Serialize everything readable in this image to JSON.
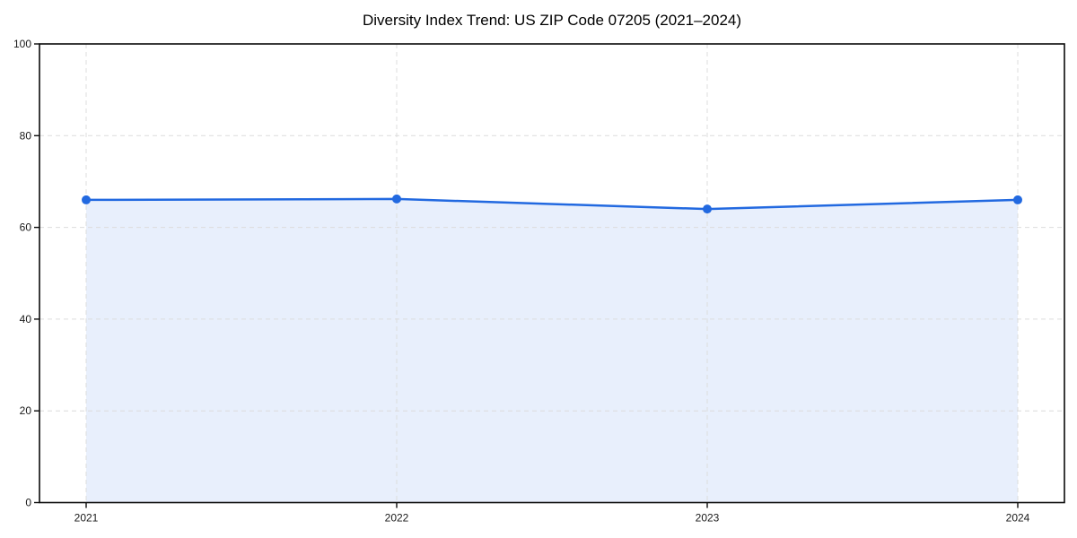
{
  "chart_data": {
    "type": "area",
    "title": "Diversity Index Trend: US ZIP Code 07205 (2021–2024)",
    "categories": [
      "2021",
      "2022",
      "2023",
      "2024"
    ],
    "series": [
      {
        "name": "Diversity Index",
        "values": [
          66,
          66.2,
          64,
          66
        ]
      }
    ],
    "xlabel": "",
    "ylabel": "",
    "ylim": [
      0,
      100
    ],
    "yticks": [
      0,
      20,
      40,
      60,
      80,
      100
    ],
    "grid": true,
    "grid_style": "dashed",
    "legend": "none",
    "marker": "circle",
    "colors": {
      "line": "#2269e0",
      "marker": "#2269e0",
      "fill": "#e8effc",
      "grid": "#dcdcdc",
      "axis": "#0a0a0a",
      "tick_text": "#1a1a1a",
      "background": "#ffffff"
    }
  }
}
